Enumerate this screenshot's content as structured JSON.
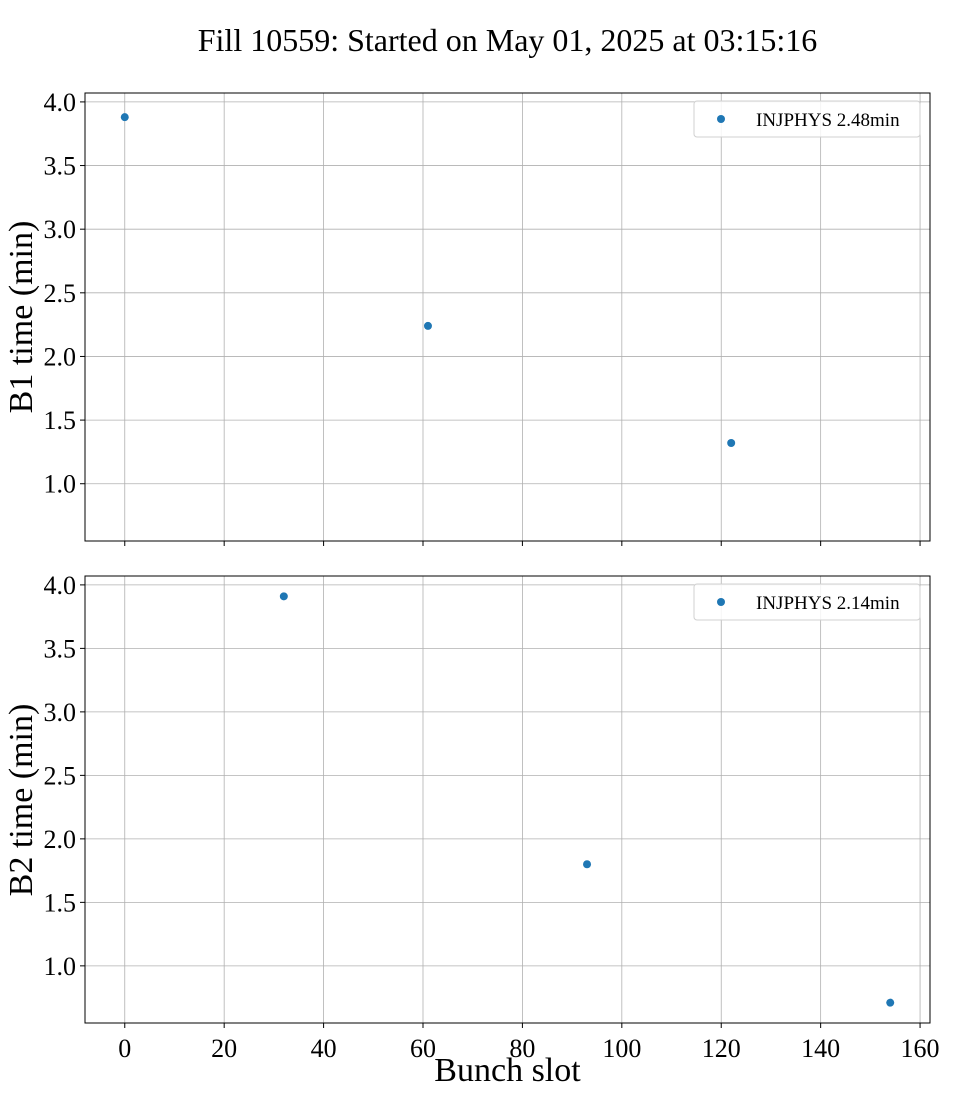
{
  "figure": {
    "title": "Fill 10559: Started on May 01, 2025 at 03:15:16",
    "xlabel": "Bunch slot"
  },
  "chart_data": [
    {
      "type": "scatter",
      "title": "",
      "xlabel": "",
      "ylabel": "B1 time (min)",
      "xlim": [
        -8,
        162
      ],
      "ylim": [
        0.55,
        4.07
      ],
      "xticks": [
        0,
        20,
        40,
        60,
        80,
        100,
        120,
        140,
        160
      ],
      "xticklabels_visible": false,
      "yticks": [
        1.0,
        1.5,
        2.0,
        2.5,
        3.0,
        3.5,
        4.0
      ],
      "ytick_labels": [
        "1.0",
        "1.5",
        "2.0",
        "2.5",
        "3.0",
        "3.5",
        "4.0"
      ],
      "grid": true,
      "legend_position": "top-right",
      "series": [
        {
          "name": "INJPHYS 2.48min",
          "color": "#1f77b4",
          "x": [
            0,
            61,
            122
          ],
          "y": [
            3.88,
            2.24,
            1.32
          ]
        }
      ]
    },
    {
      "type": "scatter",
      "title": "",
      "xlabel": "Bunch slot",
      "ylabel": "B2 time (min)",
      "xlim": [
        -8,
        162
      ],
      "ylim": [
        0.55,
        4.07
      ],
      "xticks": [
        0,
        20,
        40,
        60,
        80,
        100,
        120,
        140,
        160
      ],
      "xtick_labels": [
        "0",
        "20",
        "40",
        "60",
        "80",
        "100",
        "120",
        "140",
        "160"
      ],
      "xticklabels_visible": true,
      "yticks": [
        1.0,
        1.5,
        2.0,
        2.5,
        3.0,
        3.5,
        4.0
      ],
      "ytick_labels": [
        "1.0",
        "1.5",
        "2.0",
        "2.5",
        "3.0",
        "3.5",
        "4.0"
      ],
      "grid": true,
      "legend_position": "top-right",
      "series": [
        {
          "name": "INJPHYS 2.14min",
          "color": "#1f77b4",
          "x": [
            32,
            93,
            154
          ],
          "y": [
            3.91,
            1.8,
            0.71
          ]
        }
      ]
    }
  ]
}
